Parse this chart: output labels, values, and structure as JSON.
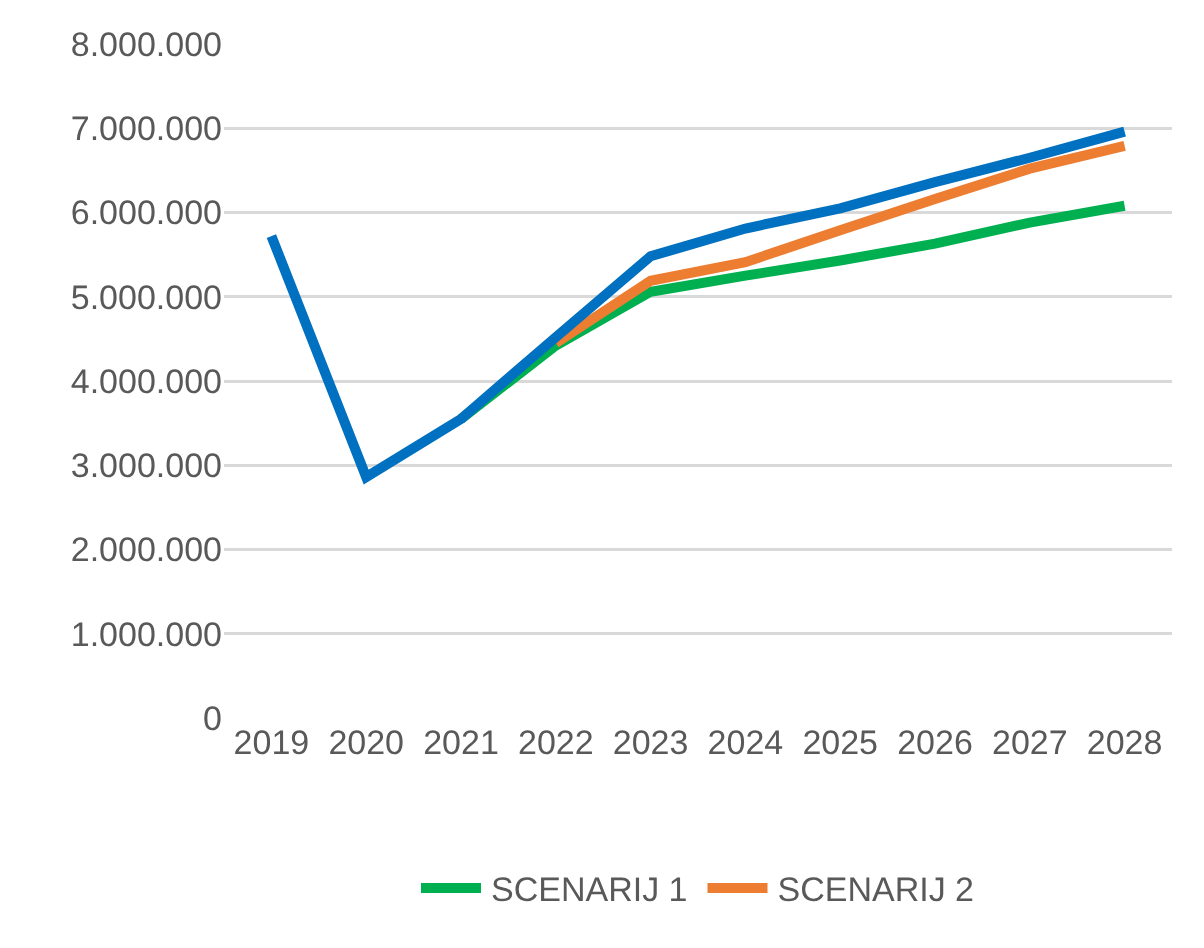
{
  "chart_data": {
    "type": "line",
    "categories": [
      "2019",
      "2020",
      "2021",
      "2022",
      "2023",
      "2024",
      "2025",
      "2026",
      "2027",
      "2028"
    ],
    "series": [
      {
        "name": "SCENARIJ 1",
        "color": "#00b050",
        "values": [
          null,
          null,
          3550000,
          4420000,
          5060000,
          5250000,
          5430000,
          5630000,
          5880000,
          6080000
        ]
      },
      {
        "name": "SCENARIJ 2",
        "color": "#ed7d31",
        "values": [
          null,
          null,
          null,
          4450000,
          5190000,
          5410000,
          5790000,
          6160000,
          6520000,
          6790000
        ]
      },
      {
        "color": "#0070c0",
        "values": [
          5720000,
          2860000,
          3550000,
          4520000,
          5480000,
          5810000,
          6050000,
          6360000,
          6650000,
          6960000
        ]
      }
    ],
    "ylim": [
      0,
      8000000
    ],
    "yticks": [
      {
        "value": 0,
        "label": "0"
      },
      {
        "value": 1000000,
        "label": "1.000.000"
      },
      {
        "value": 2000000,
        "label": "2.000.000"
      },
      {
        "value": 3000000,
        "label": "3.000.000"
      },
      {
        "value": 4000000,
        "label": "4.000.000"
      },
      {
        "value": 5000000,
        "label": "5.000.000"
      },
      {
        "value": 6000000,
        "label": "6.000.000"
      },
      {
        "value": 7000000,
        "label": "7.000.000"
      },
      {
        "value": 8000000,
        "label": "8.000.000"
      }
    ],
    "grid": "y",
    "legend": "bottom",
    "marker": "none",
    "line_style": "solid"
  }
}
